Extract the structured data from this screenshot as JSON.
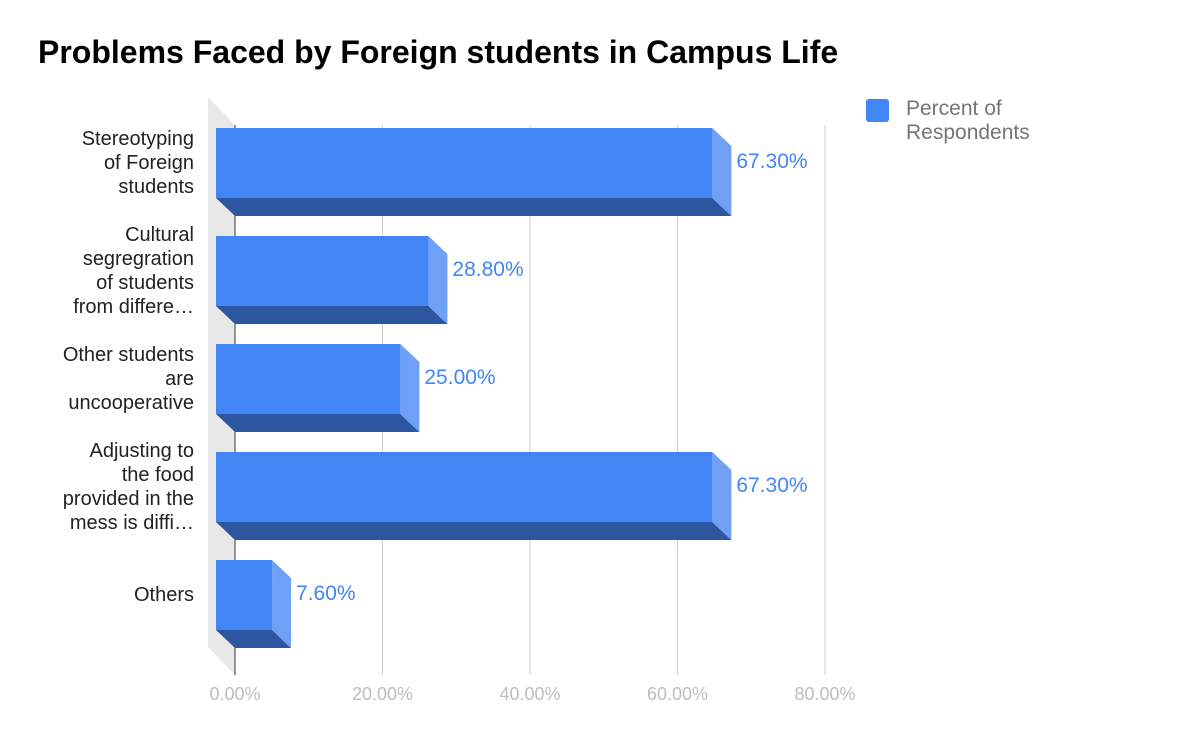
{
  "chart_data": {
    "type": "bar",
    "orientation": "horizontal",
    "title": "Problems Faced by Foreign students in Campus Life",
    "categories": [
      [
        "Stereotyping",
        "of Foreign",
        "students"
      ],
      [
        "Cultural",
        "segregration",
        "of students",
        "from differe…"
      ],
      [
        "Other students",
        "are",
        "uncooperative"
      ],
      [
        "Adjusting to",
        "the food",
        "provided in the",
        "mess is diffi…"
      ],
      [
        "Others"
      ]
    ],
    "series": [
      {
        "name": "Percent of Respondents",
        "values": [
          67.3,
          28.8,
          25.0,
          67.3,
          7.6
        ],
        "value_labels": [
          "67.30%",
          "28.80%",
          "25.00%",
          "67.30%",
          "7.60%"
        ]
      }
    ],
    "xlim": [
      0,
      80
    ],
    "x_ticks": [
      0,
      20,
      40,
      60,
      80
    ],
    "x_tick_labels": [
      "0.00%",
      "20.00%",
      "40.00%",
      "60.00%",
      "80.00%"
    ],
    "xlabel": "",
    "ylabel": "",
    "grid": true,
    "legend_position": "top-right"
  },
  "colors": {
    "bar_face": "#4285f4",
    "bar_side": "#6fa0f5",
    "bar_bottom": "#2c56a0",
    "label": "#4285f4",
    "grid": "#cccccc",
    "tick_label": "#bdbdbd",
    "wall": "#e8e8e8"
  }
}
